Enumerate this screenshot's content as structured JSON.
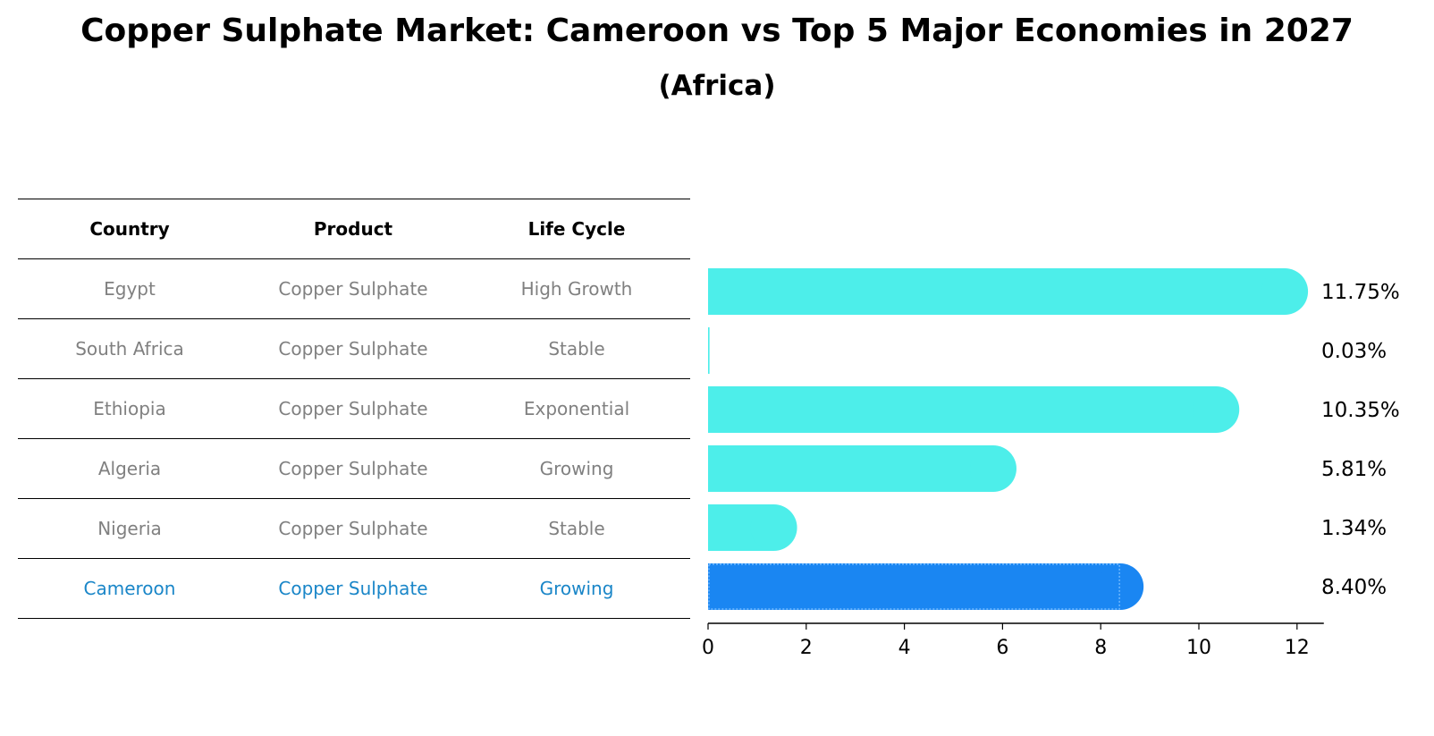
{
  "title": "Copper Sulphate Market: Cameroon vs Top 5 Major Economies in 2027",
  "subtitle": "(Africa)",
  "table": {
    "headers": [
      "Country",
      "Product",
      "Life Cycle"
    ],
    "rows": [
      [
        "Egypt",
        "Copper Sulphate",
        "High Growth"
      ],
      [
        "South Africa",
        "Copper Sulphate",
        "Stable"
      ],
      [
        "Ethiopia",
        "Copper Sulphate",
        "Exponential"
      ],
      [
        "Algeria",
        "Copper Sulphate",
        "Growing"
      ],
      [
        "Nigeria",
        "Copper Sulphate",
        "Stable"
      ],
      [
        "Cameroon",
        "Copper Sulphate",
        "Growing"
      ]
    ]
  },
  "colors": {
    "bar": "#4deeea",
    "highlight": "#1a86f2",
    "muted_text": "#808080",
    "highlight_text": "#1a86c8"
  },
  "chart_data": {
    "type": "bar",
    "orientation": "horizontal",
    "categories": [
      "Egypt",
      "South Africa",
      "Ethiopia",
      "Algeria",
      "Nigeria",
      "Cameroon"
    ],
    "values": [
      11.75,
      0.03,
      10.35,
      5.81,
      1.34,
      8.4
    ],
    "value_labels": [
      "11.75%",
      "0.03%",
      "10.35%",
      "5.81%",
      "1.34%",
      "8.40%"
    ],
    "highlight": "Cameroon",
    "xlim": [
      0,
      12.4
    ],
    "xticks": [
      0,
      2,
      4,
      6,
      8,
      10,
      12
    ],
    "xlabel": "",
    "ylabel": "",
    "grid": false
  }
}
